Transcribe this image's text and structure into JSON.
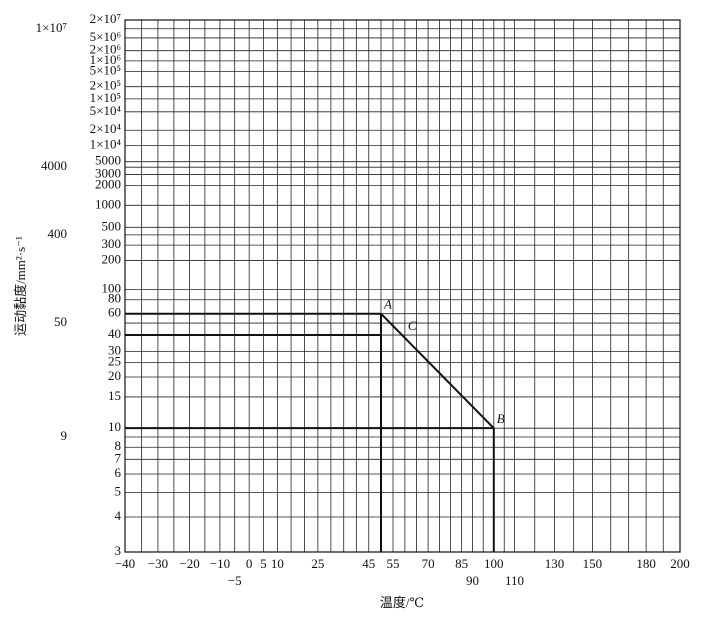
{
  "chart_data": {
    "type": "line",
    "xlabel": "温度/℃",
    "ylabel": "运动黏度/mm²·s⁻¹",
    "xscale": "log-kelvin",
    "yscale": "log-log",
    "xlim": [
      -40,
      200
    ],
    "ylim": [
      3,
      20000000
    ],
    "xticks": [
      {
        "value": -40,
        "label": "−40"
      },
      {
        "value": -30,
        "label": "−30"
      },
      {
        "value": -20,
        "label": "−20"
      },
      {
        "value": -10,
        "label": "−10"
      },
      {
        "value": -5,
        "label": "−5"
      },
      0,
      5,
      10,
      25,
      45,
      55,
      70,
      85,
      90,
      100,
      110,
      130,
      150,
      180,
      200
    ],
    "xgrid": [
      -35,
      -25,
      -15,
      15,
      20,
      30,
      35,
      40,
      50,
      60,
      65,
      75,
      80,
      95,
      105,
      120,
      140,
      160,
      170,
      190
    ],
    "yticks": [
      {
        "value": 20000000,
        "label": "2×10⁷"
      },
      {
        "value": 10000000,
        "label": "1×10⁷"
      },
      {
        "value": 5000000,
        "label": "5×10⁶"
      },
      {
        "value": 2000000,
        "label": "2×10⁶"
      },
      {
        "value": 1000000,
        "label": "1×10⁶"
      },
      {
        "value": 500000,
        "label": "5×10⁵"
      },
      {
        "value": 200000,
        "label": "2×10⁵"
      },
      {
        "value": 100000,
        "label": "1×10⁵"
      },
      {
        "value": 50000,
        "label": "5×10⁴"
      },
      {
        "value": 20000,
        "label": "2×10⁴"
      },
      {
        "value": 10000,
        "label": "1×10⁴"
      },
      5000,
      4000,
      3000,
      2000,
      1000,
      500,
      400,
      300,
      200,
      100,
      80,
      60,
      50,
      40,
      30,
      25,
      20,
      15,
      10,
      9,
      8,
      7,
      6,
      5,
      4,
      3
    ],
    "grid": true,
    "color": "#111111",
    "series": [
      {
        "x": [
          50,
          100
        ],
        "values": [
          60,
          10
        ]
      }
    ],
    "guides": [
      {
        "x": 50,
        "y": 60
      },
      {
        "x": 50,
        "y": 40
      },
      {
        "x": 100,
        "y": 10
      }
    ],
    "points": [
      {
        "label": "A",
        "x": 50,
        "y": 60
      },
      {
        "label": "C",
        "x": 60,
        "y": 40
      },
      {
        "label": "B",
        "x": 100,
        "y": 10
      }
    ]
  }
}
